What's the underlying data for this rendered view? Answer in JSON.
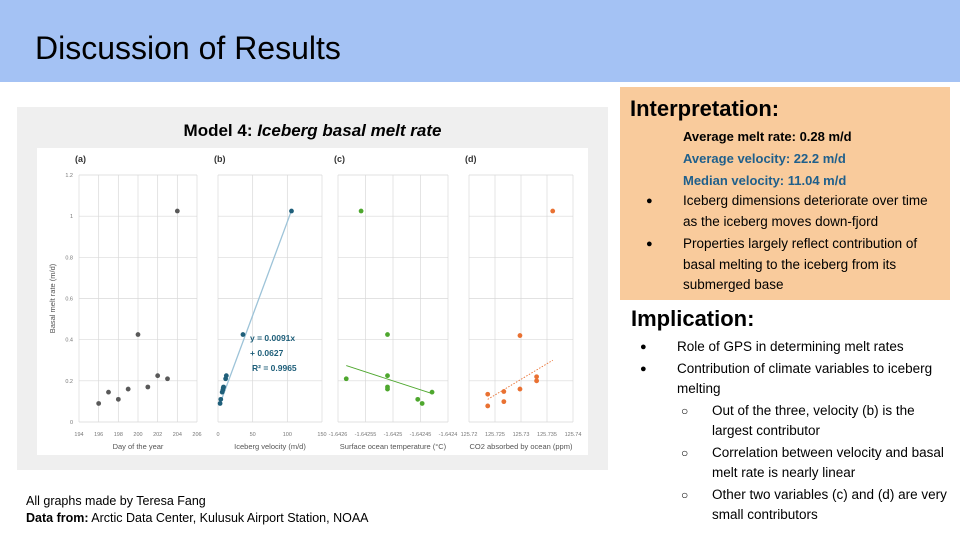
{
  "header": {
    "title": "Discussion of Results"
  },
  "figure": {
    "title_prefix": "Model 4: ",
    "title_italic": "Iceberg basal melt rate"
  },
  "credits": {
    "line1": "All graphs made by Teresa Fang",
    "source_label": "Data from:",
    "source_text": " Arctic Data Center, Kulusuk Airport Station, NOAA"
  },
  "interpretation": {
    "heading": "Interpretation:",
    "avg_melt": "Average melt rate: 0.28 m/d",
    "avg_velocity": "Average velocity: 22.2 m/d",
    "median_velocity": "Median velocity: 11.04 m/d",
    "bullets": [
      "Iceberg dimensions deteriorate over time as the iceberg moves down-fjord",
      "Properties largely reflect contribution of basal melting to the iceberg from its submerged base"
    ]
  },
  "implication": {
    "heading": "Implication:",
    "items": [
      {
        "level": 1,
        "text": "Role of GPS in determining melt rates"
      },
      {
        "level": 1,
        "text": "Contribution of climate variables to iceberg melting"
      },
      {
        "level": 2,
        "text": "Out of the three, velocity (b) is the largest contributor"
      },
      {
        "level": 2,
        "text": "Correlation between velocity and basal melt rate is nearly linear"
      },
      {
        "level": 2,
        "text": "Other two variables (c) and (d) are very small contributors"
      }
    ]
  },
  "colors": {
    "header": "#a4c2f4",
    "interp_bg": "#f9cb9c",
    "stat_blue": "#1f5f8b",
    "a": "#595959",
    "b": "#1f5f7a",
    "c": "#4ea72e",
    "d": "#e97132"
  },
  "chart_data": [
    {
      "type": "scatter",
      "label": "(a)",
      "xlabel": "Day of the year",
      "ylabel": "Basal melt rate (m/d)",
      "xlim": [
        194,
        206
      ],
      "ylim": [
        0,
        1.2
      ],
      "xticks": [
        "194",
        "196",
        "198",
        "200",
        "202",
        "204",
        "206"
      ],
      "yticks": [
        "0",
        "0.2",
        "0.4",
        "0.6",
        "0.8",
        "1",
        "1.2"
      ],
      "x": [
        196,
        197,
        198,
        199,
        200,
        201,
        202,
        203,
        204
      ],
      "y": [
        0.09,
        0.145,
        0.11,
        0.16,
        0.425,
        0.17,
        0.225,
        0.21,
        1.025
      ]
    },
    {
      "type": "scatter",
      "label": "(b)",
      "xlabel": "Iceberg velocity (m/d)",
      "xlim": [
        0,
        150
      ],
      "ylim": [
        0,
        1.2
      ],
      "xticks": [
        "0",
        "50",
        "100",
        "150"
      ],
      "x": [
        3,
        4,
        6,
        7,
        7.5,
        8,
        11,
        12,
        36,
        106
      ],
      "y": [
        0.09,
        0.11,
        0.145,
        0.155,
        0.165,
        0.17,
        0.21,
        0.225,
        0.425,
        1.025
      ],
      "trendline": {
        "type": "linear",
        "x": [
          3,
          106
        ],
        "equation": "y = 0.0091x",
        "intercept": "+ 0.0627",
        "r2": "R² = 0.9965",
        "slope": 0.0091,
        "b": 0.0627
      }
    },
    {
      "type": "scatter",
      "label": "(c)",
      "xlabel": "Surface ocean temperature (°C)",
      "xlim": [
        -1.6426,
        -1.6424
      ],
      "ylim": [
        0,
        1.2
      ],
      "xticks": [
        "-1.6426",
        "-1.64255",
        "-1.6425",
        "-1.64245",
        "-1.6424"
      ],
      "x": [
        -1.642558,
        -1.64251,
        -1.64251,
        -1.64251,
        -1.64251,
        -1.642585,
        -1.642455,
        -1.642447,
        -1.642429
      ],
      "y": [
        1.025,
        0.425,
        0.225,
        0.17,
        0.16,
        0.21,
        0.11,
        0.09,
        0.145
      ],
      "trendline": {
        "type": "linear",
        "x": [
          -1.642585,
          -1.642429
        ],
        "y": [
          0.274,
          0.138
        ]
      }
    },
    {
      "type": "scatter",
      "label": "(d)",
      "xlabel": "CO2 absorbed by ocean (ppm)",
      "xlim": [
        125.72,
        125.74
      ],
      "ylim": [
        0,
        1.2
      ],
      "xticks": [
        "125.72",
        "125.725",
        "125.73",
        "125.735",
        "125.74"
      ],
      "x": [
        125.7236,
        125.7236,
        125.7267,
        125.7267,
        125.7298,
        125.7298,
        125.733,
        125.733,
        125.7361
      ],
      "y": [
        0.135,
        0.078,
        0.148,
        0.099,
        0.42,
        0.16,
        0.22,
        0.2,
        1.025
      ],
      "trendline": {
        "type": "linear",
        "dashed": true,
        "x": [
          125.7236,
          125.7361
        ],
        "y": [
          0.11,
          0.3
        ]
      }
    }
  ]
}
